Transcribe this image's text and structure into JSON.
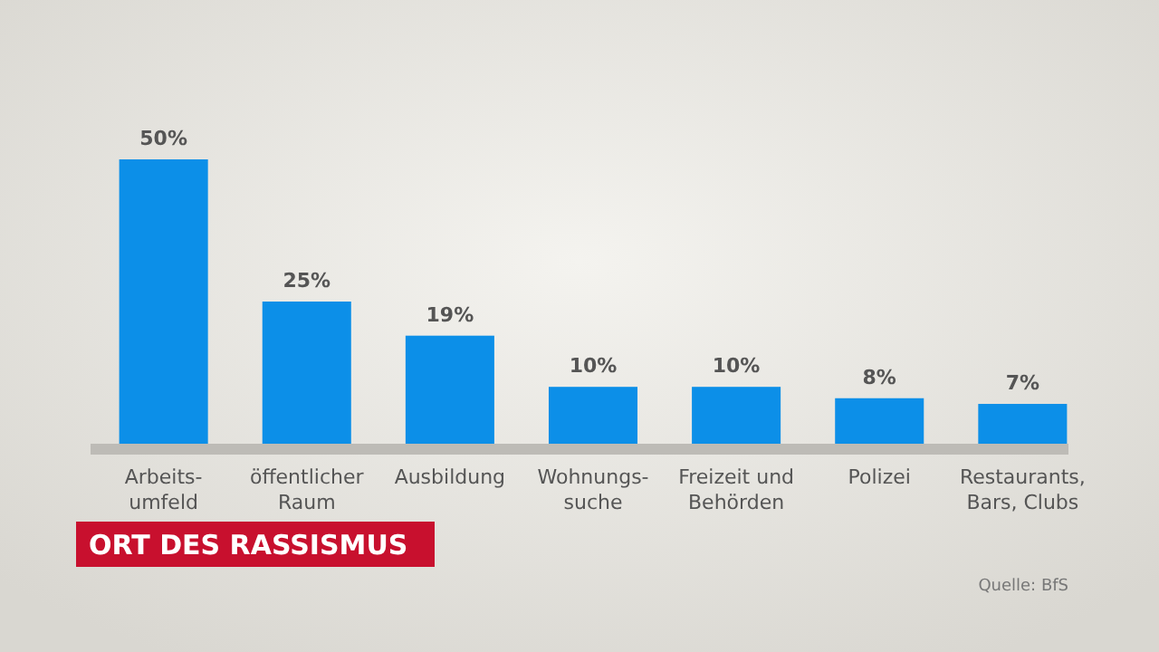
{
  "chart_data": {
    "type": "bar",
    "title": "ORT DES RASSISMUS",
    "categories": [
      "Arbeits-\numfeld",
      "öffentlicher\nRaum",
      "Ausbildung",
      "Wohnungs-\nsuche",
      "Freizeit und\nBehörden",
      "Polizei",
      "Restaurants,\nBars, Clubs"
    ],
    "values": [
      50,
      25,
      19,
      10,
      10,
      8,
      7
    ],
    "color": "#0c8fe8",
    "value_labels": [
      "50%",
      "25%",
      "19%",
      "10%",
      "10%",
      "8%",
      "7%"
    ],
    "tick_labels": "x",
    "annotations": [
      "Quelle: BfS"
    ]
  }
}
